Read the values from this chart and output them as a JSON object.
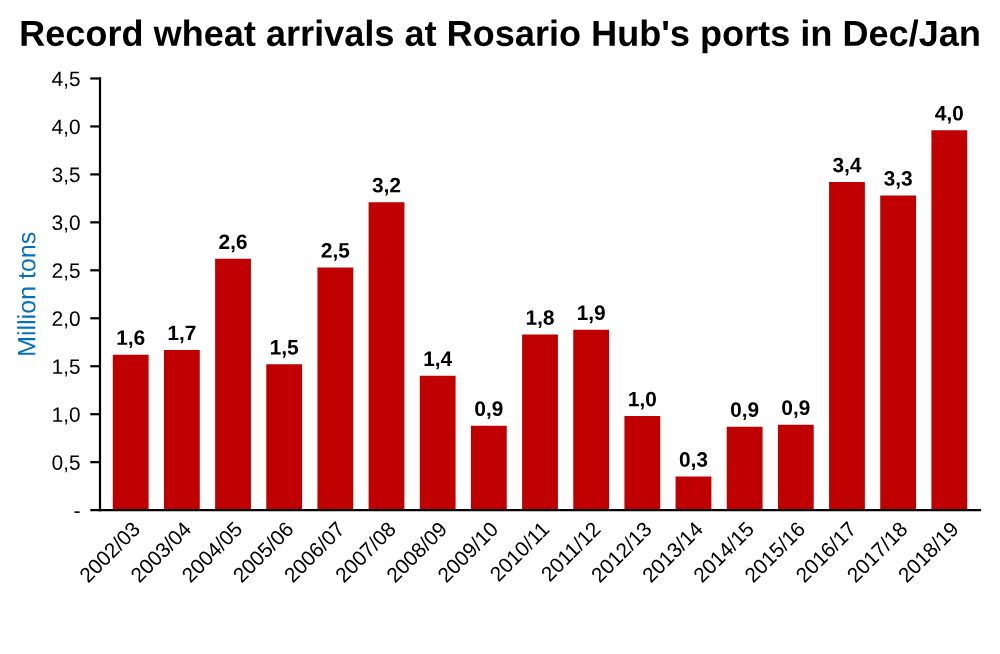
{
  "chart_data": {
    "type": "bar",
    "title": "Record wheat arrivals at Rosario Hub's ports in Dec/Jan",
    "ylabel": "Million tons",
    "categories": [
      "2002/03",
      "2003/04",
      "2004/05",
      "2005/06",
      "2006/07",
      "2007/08",
      "2008/09",
      "2009/10",
      "2010/11",
      "2011/12",
      "2012/13",
      "2013/14",
      "2014/15",
      "2015/16",
      "2016/17",
      "2017/18",
      "2018/19"
    ],
    "values": [
      1.62,
      1.67,
      2.62,
      1.52,
      2.53,
      3.21,
      1.4,
      0.88,
      1.83,
      1.88,
      0.98,
      0.35,
      0.87,
      0.89,
      3.42,
      3.28,
      3.96
    ],
    "value_labels": [
      "1,6",
      "1,7",
      "2,6",
      "1,5",
      "2,5",
      "3,2",
      "1,4",
      "0,9",
      "1,8",
      "1,9",
      "1,0",
      "0,3",
      "0,9",
      "0,9",
      "3,4",
      "3,3",
      "4,0"
    ],
    "color": "#c00000",
    "ylim": [
      0,
      4.5
    ],
    "yticks": [
      {
        "value": 0,
        "label": "-"
      },
      {
        "value": 0.5,
        "label": "0,5"
      },
      {
        "value": 1,
        "label": "1,0"
      },
      {
        "value": 1.5,
        "label": "1,5"
      },
      {
        "value": 2,
        "label": "2,0"
      },
      {
        "value": 2.5,
        "label": "2,5"
      },
      {
        "value": 3,
        "label": "3,0"
      },
      {
        "value": 3.5,
        "label": "3,5"
      },
      {
        "value": 4,
        "label": "4,0"
      },
      {
        "value": 4.5,
        "label": "4,5"
      }
    ],
    "grid": false,
    "legend": false
  }
}
